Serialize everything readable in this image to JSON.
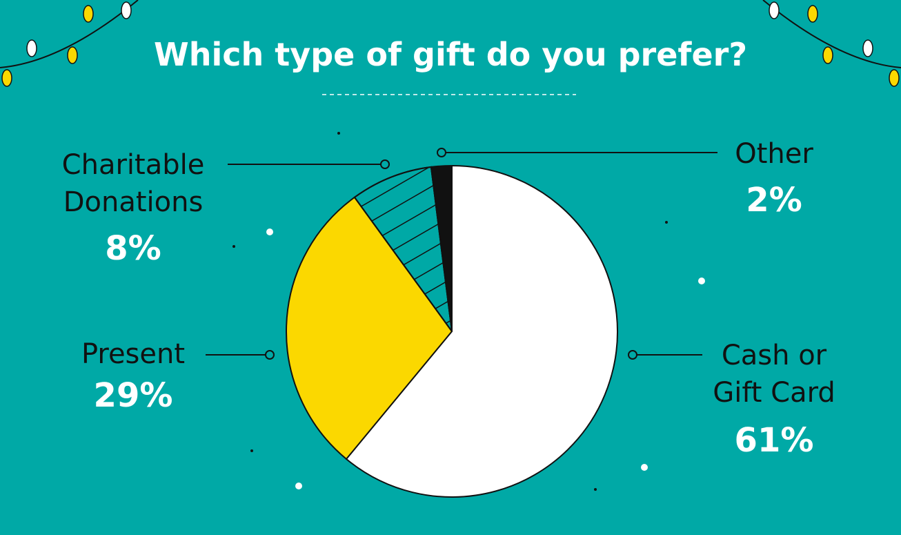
{
  "chart_data": {
    "type": "pie",
    "title": "Which type of gift do you prefer?",
    "categories": [
      "Cash or Gift Card",
      "Present",
      "Charitable Donations",
      "Other"
    ],
    "values": [
      61,
      29,
      8,
      2
    ],
    "value_labels": [
      "61%",
      "29%",
      "8%",
      "2%"
    ],
    "colors": [
      "#ffffff",
      "#fbd800",
      "#00a9a6",
      "#111111"
    ]
  }
}
